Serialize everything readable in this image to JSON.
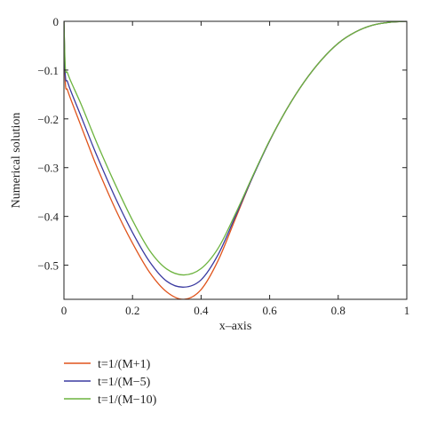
{
  "chart_data": {
    "type": "line",
    "xlabel": "x–axis",
    "ylabel": "Numerical solution",
    "xlim": [
      0,
      1
    ],
    "ylim": [
      -0.57,
      0
    ],
    "grid": false,
    "legend_position": "below",
    "x_ticks": [
      {
        "value": 0,
        "label": "0"
      },
      {
        "value": 0.2,
        "label": "0.2"
      },
      {
        "value": 0.4,
        "label": "0.4"
      },
      {
        "value": 0.6,
        "label": "0.6"
      },
      {
        "value": 0.8,
        "label": "0.8"
      },
      {
        "value": 1,
        "label": "1"
      }
    ],
    "y_ticks": [
      {
        "value": 0,
        "label": "0"
      },
      {
        "value": -0.1,
        "label": "−0.1"
      },
      {
        "value": -0.2,
        "label": "−0.2"
      },
      {
        "value": -0.3,
        "label": "−0.3"
      },
      {
        "value": -0.4,
        "label": "−0.4"
      },
      {
        "value": -0.5,
        "label": "−0.5"
      }
    ],
    "x": [
      0,
      0.004,
      0.01,
      0.02,
      0.05,
      0.08,
      0.1,
      0.15,
      0.2,
      0.25,
      0.3,
      0.35,
      0.4,
      0.45,
      0.5,
      0.55,
      0.6,
      0.65,
      0.7,
      0.75,
      0.8,
      0.85,
      0.9,
      0.95,
      1.0
    ],
    "series": [
      {
        "name": "t=1/(M+1)",
        "color": "#e0541c",
        "values": [
          0,
          -0.125,
          -0.14,
          -0.16,
          -0.215,
          -0.27,
          -0.305,
          -0.385,
          -0.455,
          -0.515,
          -0.555,
          -0.57,
          -0.55,
          -0.49,
          -0.405,
          -0.32,
          -0.245,
          -0.18,
          -0.125,
          -0.08,
          -0.045,
          -0.022,
          -0.008,
          -0.002,
          0
        ]
      },
      {
        "name": "t=1/(M−5)",
        "color": "#3a3aa0",
        "values": [
          0,
          -0.11,
          -0.123,
          -0.143,
          -0.195,
          -0.248,
          -0.282,
          -0.362,
          -0.433,
          -0.493,
          -0.533,
          -0.545,
          -0.53,
          -0.478,
          -0.4,
          -0.32,
          -0.245,
          -0.18,
          -0.125,
          -0.08,
          -0.045,
          -0.022,
          -0.008,
          -0.002,
          0
        ]
      },
      {
        "name": "t=1/(M−10)",
        "color": "#6cb33e",
        "values": [
          0,
          -0.095,
          -0.105,
          -0.123,
          -0.17,
          -0.222,
          -0.256,
          -0.335,
          -0.408,
          -0.47,
          -0.508,
          -0.52,
          -0.507,
          -0.465,
          -0.395,
          -0.318,
          -0.244,
          -0.18,
          -0.125,
          -0.08,
          -0.045,
          -0.022,
          -0.008,
          -0.002,
          0
        ]
      }
    ]
  }
}
